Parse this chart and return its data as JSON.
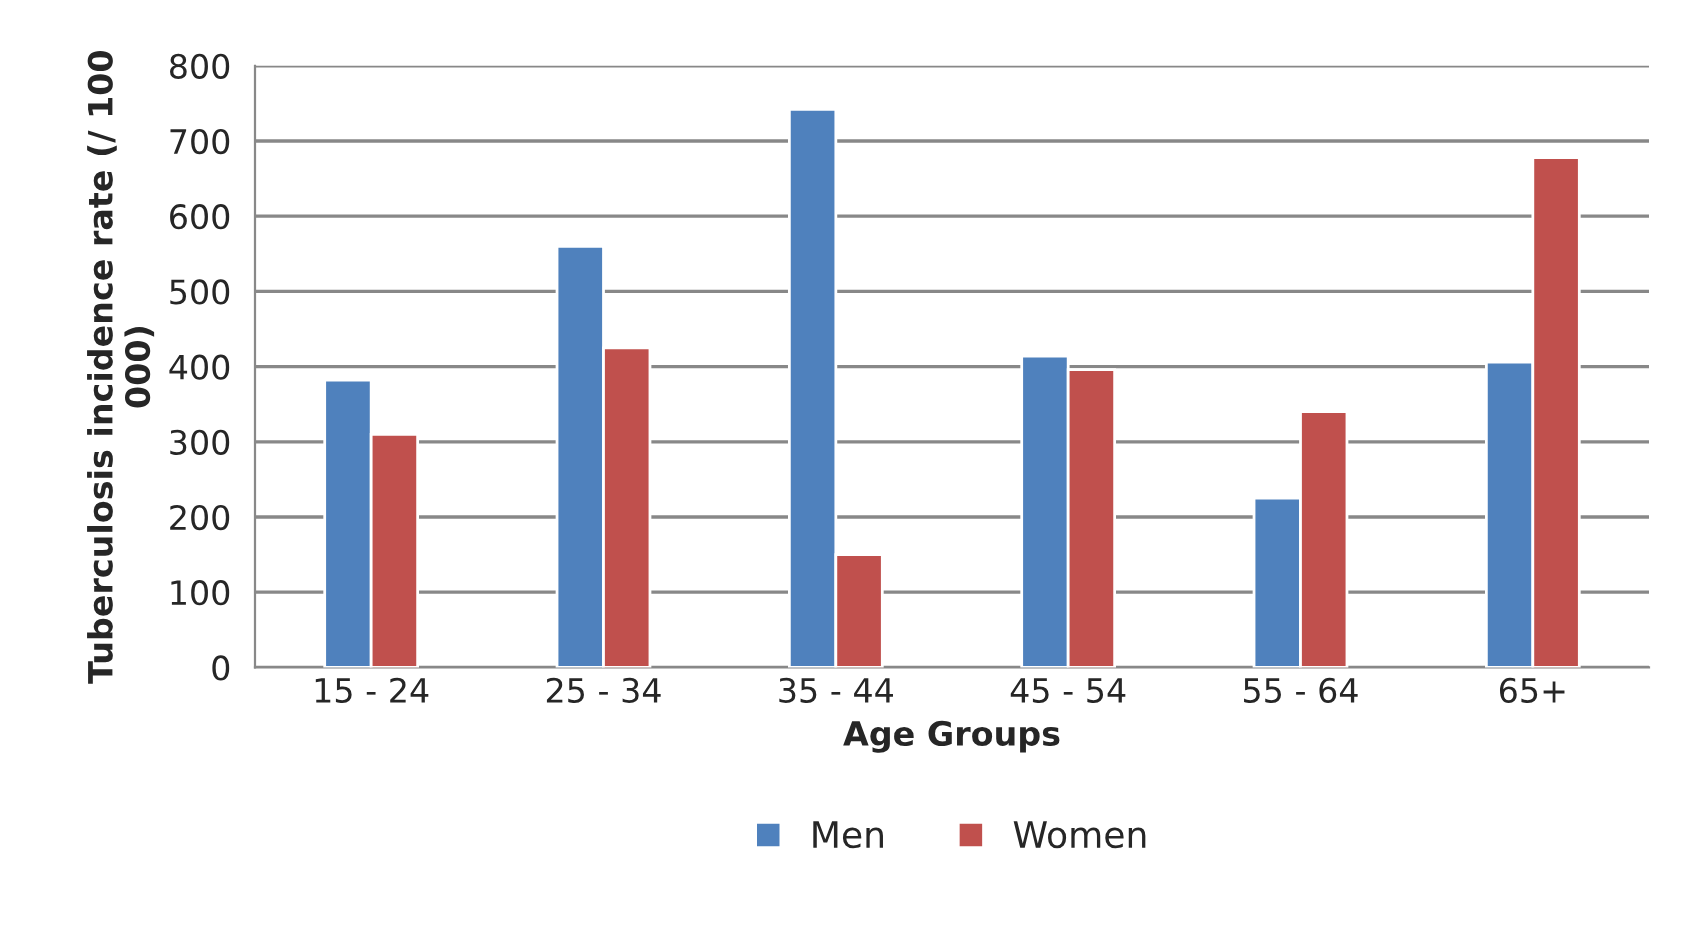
{
  "chart_data": {
    "type": "bar",
    "xlabel": "Age Groups",
    "ylabel": "Tuberculosis incidence rate (/ 100 000)",
    "categories": [
      "15 - 24",
      "25 - 34",
      "35 - 44",
      "45 - 54",
      "55 - 64",
      "65+"
    ],
    "series": [
      {
        "name": "Men",
        "color": "#4f81bd",
        "values": [
          382,
          560,
          742,
          414,
          225,
          406
        ]
      },
      {
        "name": "Women",
        "color": "#c0504d",
        "values": [
          310,
          425,
          150,
          396,
          340,
          678
        ]
      }
    ],
    "ylim": [
      0,
      800
    ],
    "yticks": [
      0,
      100,
      200,
      300,
      400,
      500,
      600,
      700,
      800
    ],
    "grid": "y",
    "legend": "bottom"
  }
}
